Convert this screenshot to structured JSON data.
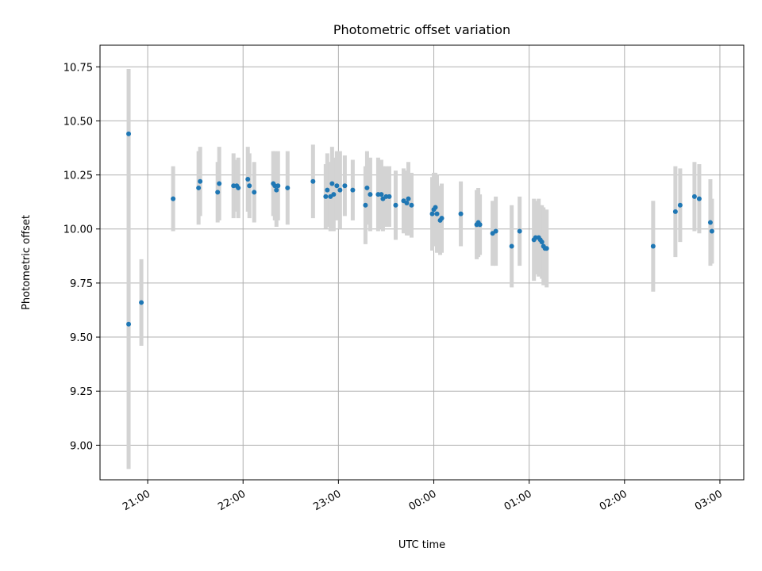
{
  "chart_data": {
    "type": "scatter",
    "title": "Photometric offset variation",
    "xlabel": "UTC time",
    "ylabel": "Photometric offset",
    "x_unit": "UTC time (HH:MM, night spanning midnight)",
    "x_ticks": [
      "21:00",
      "22:00",
      "23:00",
      "00:00",
      "01:00",
      "02:00",
      "03:00"
    ],
    "xlim": [
      "20:30",
      "03:15"
    ],
    "y_ticks": [
      "9.00",
      "9.25",
      "9.50",
      "9.75",
      "10.00",
      "10.25",
      "10.50",
      "10.75"
    ],
    "ylim": [
      8.84,
      10.85
    ],
    "grid": true,
    "colors": {
      "point": "#1f77b4",
      "errorbar": "#d3d3d3",
      "grid": "#b0b0b0"
    },
    "series": [
      {
        "points": [
          {
            "x": "20:48",
            "y": 10.44,
            "err": 0.3
          },
          {
            "x": "20:48",
            "y": 9.56,
            "err": 0.67
          },
          {
            "x": "20:56",
            "y": 9.66,
            "err": 0.2
          },
          {
            "x": "21:16",
            "y": 10.14,
            "err": 0.15
          },
          {
            "x": "21:32",
            "y": 10.19,
            "err": 0.17
          },
          {
            "x": "21:33",
            "y": 10.22,
            "err": 0.16
          },
          {
            "x": "21:44",
            "y": 10.17,
            "err": 0.14
          },
          {
            "x": "21:45",
            "y": 10.21,
            "err": 0.17
          },
          {
            "x": "21:54",
            "y": 10.2,
            "err": 0.15
          },
          {
            "x": "21:56",
            "y": 10.2,
            "err": 0.12
          },
          {
            "x": "21:57",
            "y": 10.19,
            "err": 0.14
          },
          {
            "x": "22:03",
            "y": 10.23,
            "err": 0.15
          },
          {
            "x": "22:04",
            "y": 10.2,
            "err": 0.15
          },
          {
            "x": "22:07",
            "y": 10.17,
            "err": 0.14
          },
          {
            "x": "22:19",
            "y": 10.21,
            "err": 0.15
          },
          {
            "x": "22:20",
            "y": 10.2,
            "err": 0.16
          },
          {
            "x": "22:21",
            "y": 10.18,
            "err": 0.17
          },
          {
            "x": "22:22",
            "y": 10.2,
            "err": 0.16
          },
          {
            "x": "22:28",
            "y": 10.19,
            "err": 0.17
          },
          {
            "x": "22:44",
            "y": 10.22,
            "err": 0.17
          },
          {
            "x": "22:52",
            "y": 10.15,
            "err": 0.15
          },
          {
            "x": "22:53",
            "y": 10.18,
            "err": 0.17
          },
          {
            "x": "22:55",
            "y": 10.15,
            "err": 0.16
          },
          {
            "x": "22:56",
            "y": 10.21,
            "err": 0.17
          },
          {
            "x": "22:57",
            "y": 10.16,
            "err": 0.17
          },
          {
            "x": "22:59",
            "y": 10.2,
            "err": 0.16
          },
          {
            "x": "23:01",
            "y": 10.18,
            "err": 0.18
          },
          {
            "x": "23:04",
            "y": 10.2,
            "err": 0.14
          },
          {
            "x": "23:09",
            "y": 10.18,
            "err": 0.14
          },
          {
            "x": "23:17",
            "y": 10.11,
            "err": 0.18
          },
          {
            "x": "23:18",
            "y": 10.19,
            "err": 0.17
          },
          {
            "x": "23:20",
            "y": 10.16,
            "err": 0.17
          },
          {
            "x": "23:25",
            "y": 10.16,
            "err": 0.17
          },
          {
            "x": "23:27",
            "y": 10.16,
            "err": 0.16
          },
          {
            "x": "23:28",
            "y": 10.14,
            "err": 0.15
          },
          {
            "x": "23:30",
            "y": 10.15,
            "err": 0.14
          },
          {
            "x": "23:32",
            "y": 10.15,
            "err": 0.14
          },
          {
            "x": "23:36",
            "y": 10.11,
            "err": 0.16
          },
          {
            "x": "23:41",
            "y": 10.13,
            "err": 0.15
          },
          {
            "x": "23:43",
            "y": 10.12,
            "err": 0.15
          },
          {
            "x": "23:44",
            "y": 10.14,
            "err": 0.17
          },
          {
            "x": "23:46",
            "y": 10.11,
            "err": 0.15
          },
          {
            "x": "23:59",
            "y": 10.07,
            "err": 0.17
          },
          {
            "x": "24:00",
            "y": 10.09,
            "err": 0.17
          },
          {
            "x": "24:01",
            "y": 10.1,
            "err": 0.16
          },
          {
            "x": "24:02",
            "y": 10.07,
            "err": 0.18
          },
          {
            "x": "24:04",
            "y": 10.04,
            "err": 0.16
          },
          {
            "x": "24:05",
            "y": 10.05,
            "err": 0.16
          },
          {
            "x": "24:17",
            "y": 10.07,
            "err": 0.15
          },
          {
            "x": "24:27",
            "y": 10.02,
            "err": 0.16
          },
          {
            "x": "24:28",
            "y": 10.03,
            "err": 0.16
          },
          {
            "x": "24:29",
            "y": 10.02,
            "err": 0.14
          },
          {
            "x": "24:37",
            "y": 9.98,
            "err": 0.15
          },
          {
            "x": "24:39",
            "y": 9.99,
            "err": 0.16
          },
          {
            "x": "24:49",
            "y": 9.92,
            "err": 0.19
          },
          {
            "x": "24:54",
            "y": 9.99,
            "err": 0.16
          },
          {
            "x": "25:03",
            "y": 9.95,
            "err": 0.19
          },
          {
            "x": "25:04",
            "y": 9.96,
            "err": 0.17
          },
          {
            "x": "25:06",
            "y": 9.96,
            "err": 0.18
          },
          {
            "x": "25:07",
            "y": 9.95,
            "err": 0.16
          },
          {
            "x": "25:08",
            "y": 9.94,
            "err": 0.17
          },
          {
            "x": "25:09",
            "y": 9.92,
            "err": 0.18
          },
          {
            "x": "25:10",
            "y": 9.91,
            "err": 0.17
          },
          {
            "x": "25:11",
            "y": 9.91,
            "err": 0.18
          },
          {
            "x": "26:18",
            "y": 9.92,
            "err": 0.21
          },
          {
            "x": "26:32",
            "y": 10.08,
            "err": 0.21
          },
          {
            "x": "26:35",
            "y": 10.11,
            "err": 0.17
          },
          {
            "x": "26:44",
            "y": 10.15,
            "err": 0.16
          },
          {
            "x": "26:47",
            "y": 10.14,
            "err": 0.16
          },
          {
            "x": "26:54",
            "y": 10.03,
            "err": 0.2
          },
          {
            "x": "26:55",
            "y": 9.99,
            "err": 0.15
          }
        ]
      }
    ]
  }
}
